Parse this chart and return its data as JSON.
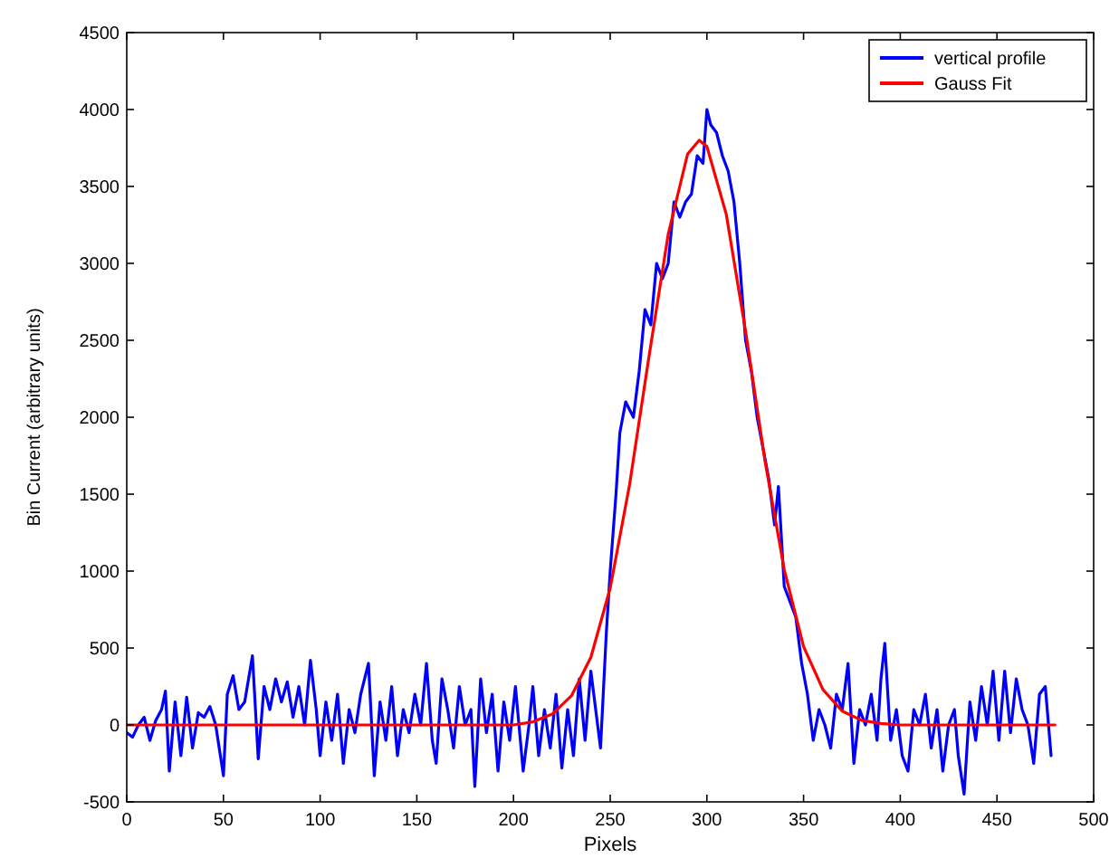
{
  "chart_data": {
    "type": "line",
    "xlabel": "Pixels",
    "ylabel": "Bin Current (arbitrary units)",
    "xlim": [
      0,
      500
    ],
    "xticks": [
      0,
      50,
      100,
      150,
      200,
      250,
      300,
      350,
      400,
      450,
      500
    ],
    "ylim": [
      -500,
      4500
    ],
    "yticks": [
      -500,
      0,
      500,
      1000,
      1500,
      2000,
      2500,
      3000,
      3500,
      4000,
      4500
    ],
    "grid": false,
    "legend": "top right",
    "marker": "none",
    "line_style": "solid",
    "series": [
      {
        "name": "vertical profile",
        "color": "#0000ff",
        "x": [
          0,
          3,
          6,
          9,
          12,
          15,
          18,
          20,
          22,
          25,
          28,
          31,
          34,
          37,
          40,
          43,
          46,
          50,
          52,
          55,
          58,
          61,
          65,
          68,
          71,
          74,
          77,
          80,
          83,
          86,
          89,
          92,
          95,
          98,
          100,
          103,
          106,
          109,
          112,
          115,
          118,
          121,
          125,
          128,
          131,
          134,
          137,
          140,
          143,
          146,
          149,
          152,
          155,
          158,
          160,
          163,
          166,
          169,
          172,
          175,
          178,
          180,
          183,
          186,
          189,
          192,
          195,
          198,
          201,
          205,
          208,
          210,
          213,
          216,
          219,
          222,
          225,
          228,
          231,
          234,
          237,
          240,
          243,
          245,
          248,
          250,
          253,
          255,
          258,
          262,
          265,
          268,
          271,
          274,
          277,
          280,
          283,
          286,
          289,
          292,
          295,
          298,
          300,
          302,
          305,
          308,
          311,
          314,
          317,
          320,
          323,
          326,
          329,
          332,
          335,
          337,
          340,
          343,
          346,
          349,
          352,
          355,
          358,
          361,
          364,
          367,
          370,
          373,
          376,
          379,
          382,
          385,
          388,
          390,
          392,
          395,
          398,
          401,
          404,
          407,
          410,
          413,
          416,
          419,
          422,
          425,
          428,
          430,
          433,
          436,
          439,
          442,
          445,
          448,
          451,
          454,
          457,
          460,
          463,
          466,
          469,
          472,
          475,
          478
        ],
        "values": [
          -50,
          -80,
          0,
          50,
          -100,
          30,
          100,
          220,
          -300,
          150,
          -200,
          180,
          -150,
          80,
          50,
          120,
          0,
          -330,
          200,
          320,
          100,
          150,
          450,
          -220,
          250,
          100,
          300,
          150,
          280,
          50,
          250,
          0,
          420,
          100,
          -200,
          150,
          -100,
          200,
          -250,
          100,
          -50,
          200,
          400,
          -330,
          150,
          -100,
          250,
          -200,
          100,
          -50,
          200,
          0,
          400,
          -100,
          -250,
          300,
          100,
          -150,
          250,
          0,
          100,
          -400,
          300,
          -50,
          200,
          -300,
          150,
          -100,
          250,
          -300,
          0,
          250,
          -200,
          100,
          -150,
          200,
          -280,
          100,
          -200,
          300,
          -100,
          350,
          50,
          -150,
          600,
          1000,
          1500,
          1900,
          2100,
          2000,
          2300,
          2700,
          2600,
          3000,
          2900,
          3000,
          3400,
          3300,
          3400,
          3450,
          3700,
          3650,
          4000,
          3900,
          3850,
          3700,
          3600,
          3400,
          3000,
          2500,
          2300,
          2000,
          1800,
          1600,
          1300,
          1550,
          900,
          800,
          700,
          400,
          200,
          -100,
          100,
          0,
          -150,
          200,
          100,
          400,
          -250,
          100,
          0,
          200,
          -100,
          300,
          530,
          -100,
          100,
          -200,
          -300,
          100,
          0,
          200,
          -150,
          100,
          -300,
          0,
          100,
          -200,
          -450,
          150,
          -100,
          250,
          0,
          350,
          -100,
          350,
          -50,
          300,
          100,
          0,
          -250,
          200,
          250,
          -200
        ]
      },
      {
        "name": "Gauss Fit",
        "color": "#ff0000",
        "x": [
          0,
          50,
          100,
          150,
          200,
          210,
          220,
          230,
          240,
          250,
          260,
          270,
          280,
          290,
          296,
          300,
          310,
          320,
          330,
          340,
          350,
          360,
          370,
          380,
          390,
          400,
          440,
          480
        ],
        "values": [
          0,
          0,
          0,
          0,
          0,
          20,
          70,
          190,
          440,
          890,
          1560,
          2390,
          3190,
          3710,
          3800,
          3760,
          3320,
          2560,
          1720,
          1010,
          510,
          230,
          90,
          30,
          10,
          0,
          0,
          0
        ]
      }
    ]
  }
}
